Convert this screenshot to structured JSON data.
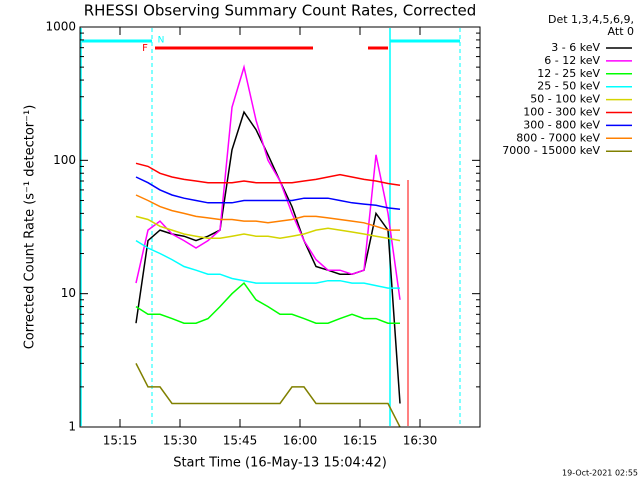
{
  "chart_data": {
    "type": "line",
    "title": "RHESSI Observing Summary Count Rates, Corrected",
    "xlabel": "Start Time (16-May-13 15:04:42)",
    "ylabel": "Corrected Count Rate (s⁻¹ detector⁻¹)",
    "legend_header": [
      "Det 1,3,4,5,6,9,",
      "Att 0"
    ],
    "annotations": [
      "F",
      "N"
    ],
    "footnote": "19-Oct-2021 02:55",
    "log_y": true,
    "xlim": [
      905,
      1005
    ],
    "ylim": [
      1,
      1000
    ],
    "xticks": [
      {
        "value": 915,
        "label": "15:15"
      },
      {
        "value": 930,
        "label": "15:30"
      },
      {
        "value": 945,
        "label": "15:45"
      },
      {
        "value": 960,
        "label": "16:00"
      },
      {
        "value": 975,
        "label": "16:15"
      },
      {
        "value": 990,
        "label": "16:30"
      }
    ],
    "yticks": [
      1,
      10,
      100,
      1000
    ],
    "x": [
      919,
      922,
      925,
      928,
      931,
      934,
      937,
      940,
      943,
      946,
      949,
      952,
      955,
      958,
      961,
      964,
      967,
      970,
      973,
      976,
      979,
      982,
      985
    ],
    "series": [
      {
        "name": "3 - 6 keV",
        "color": "#000000",
        "values": [
          6,
          25,
          30,
          28,
          27,
          25,
          27,
          30,
          120,
          230,
          170,
          110,
          70,
          45,
          25,
          16,
          15,
          14,
          14,
          15,
          40,
          30,
          1.5
        ]
      },
      {
        "name": "6 - 12 keV",
        "color": "#ff00ff",
        "values": [
          12,
          30,
          35,
          28,
          25,
          22,
          25,
          30,
          250,
          500,
          200,
          100,
          70,
          40,
          25,
          18,
          15,
          15,
          14,
          15,
          110,
          40,
          9
        ]
      },
      {
        "name": "12 - 25 keV",
        "color": "#00ff00",
        "values": [
          8,
          7,
          7,
          6.5,
          6,
          6,
          6.5,
          8,
          10,
          12,
          9,
          8,
          7,
          7,
          6.5,
          6,
          6,
          6.5,
          7,
          6.5,
          6.5,
          6,
          6
        ]
      },
      {
        "name": "25 - 50 keV",
        "color": "#00ffff",
        "values": [
          25,
          22,
          20,
          18,
          16,
          15,
          14,
          14,
          13,
          12.5,
          12,
          12,
          12,
          12,
          12,
          12,
          12.5,
          12.5,
          12,
          12,
          11.5,
          11,
          11
        ]
      },
      {
        "name": "50 - 100 keV",
        "color": "#d4d400",
        "values": [
          38,
          36,
          32,
          30,
          28,
          27,
          26,
          26,
          27,
          28,
          27,
          27,
          26,
          27,
          28,
          30,
          31,
          30,
          29,
          28,
          27,
          26,
          25
        ]
      },
      {
        "name": "100 - 300 keV",
        "color": "#ff0000",
        "values": [
          95,
          90,
          80,
          75,
          72,
          70,
          68,
          68,
          68,
          70,
          68,
          68,
          68,
          68,
          70,
          72,
          75,
          78,
          75,
          72,
          70,
          67,
          65
        ]
      },
      {
        "name": "300 - 800 keV",
        "color": "#0000ff",
        "values": [
          75,
          68,
          60,
          55,
          52,
          50,
          48,
          48,
          48,
          50,
          50,
          50,
          50,
          50,
          52,
          52,
          52,
          50,
          48,
          47,
          46,
          44,
          43
        ]
      },
      {
        "name": "800 - 7000 keV",
        "color": "#ff8000",
        "values": [
          55,
          50,
          45,
          42,
          40,
          38,
          37,
          36,
          36,
          35,
          35,
          34,
          35,
          36,
          38,
          38,
          37,
          36,
          35,
          34,
          32,
          30,
          30
        ]
      },
      {
        "name": "7000 - 15000 keV",
        "color": "#808000",
        "values": [
          3,
          2,
          2,
          1.5,
          1.5,
          1.5,
          1.5,
          1.5,
          1.5,
          1.5,
          1.5,
          1.5,
          1.5,
          2,
          2,
          1.5,
          1.5,
          1.5,
          1.5,
          1.5,
          1.5,
          1.5,
          1
        ]
      }
    ]
  }
}
